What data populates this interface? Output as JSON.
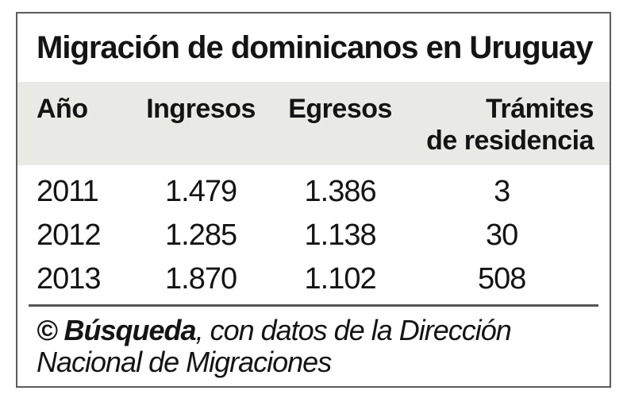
{
  "chart_data": {
    "type": "table",
    "title": "Migración de dominicanos en Uruguay",
    "columns": [
      "Año",
      "Ingresos",
      "Egresos",
      "Trámites de residencia"
    ],
    "header": {
      "ano": "Año",
      "ingresos": "Ingresos",
      "egresos": "Egresos",
      "tramites_line1": "Trámites",
      "tramites_line2": "de residencia"
    },
    "rows": [
      {
        "ano": "2011",
        "ingresos": "1.479",
        "egresos": "1.386",
        "tramites": "3"
      },
      {
        "ano": "2012",
        "ingresos": "1.285",
        "egresos": "1.138",
        "tramites": "30"
      },
      {
        "ano": "2013",
        "ingresos": "1.870",
        "egresos": "1.102",
        "tramites": "508"
      }
    ],
    "rows_numeric": [
      [
        2011,
        1479,
        1386,
        3
      ],
      [
        2012,
        1285,
        1138,
        30
      ],
      [
        2013,
        1870,
        1102,
        508
      ]
    ],
    "source": {
      "publisher": "© Búsqueda",
      "line1_rest": ", con datos de la Dirección",
      "line2": "Nacional de Migraciones"
    }
  },
  "colors": {
    "background": "#ffffff",
    "header_band": "#e9e9e6",
    "border": "#5c5c5c",
    "separator": "#555555",
    "text": "#141414"
  }
}
